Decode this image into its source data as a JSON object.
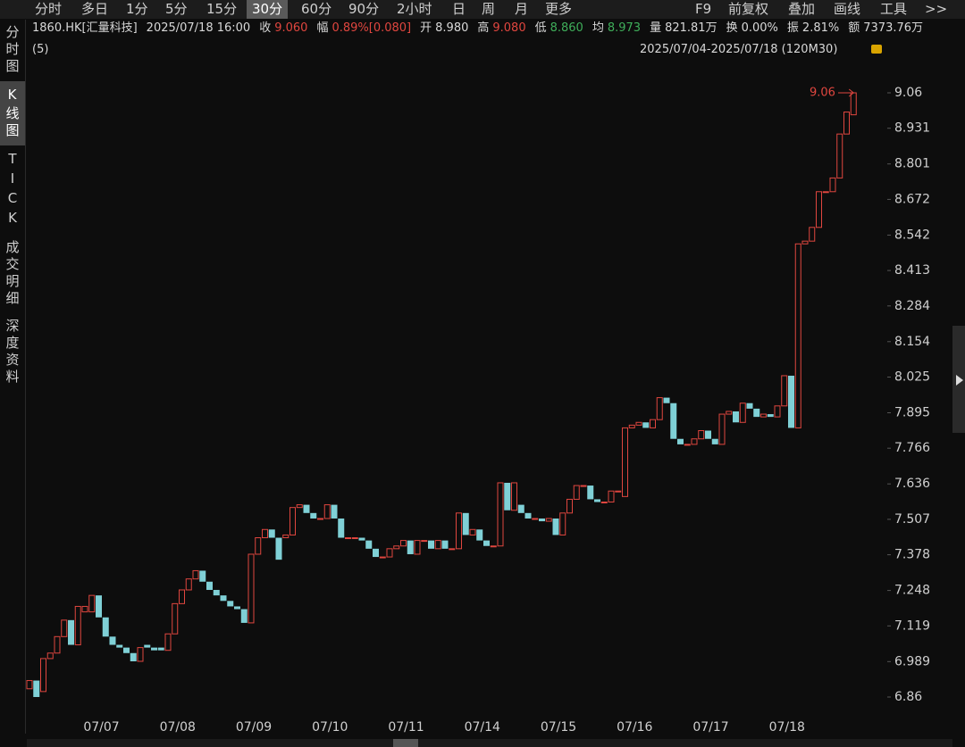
{
  "toolbar": {
    "left": [
      "分时",
      "多日",
      "1分",
      "5分",
      "15分",
      "30分",
      "60分",
      "90分",
      "2小时",
      "日",
      "周",
      "月",
      "更多"
    ],
    "right": [
      "F9",
      "前复权",
      "叠加",
      "画线",
      "工具",
      ">>"
    ]
  },
  "sidebar": [
    "分时图",
    "K线图",
    "TICK",
    "成交明细",
    "深度资料"
  ],
  "info": {
    "symbol": "1860.HK[汇量科技]",
    "time": "2025/07/18 16:00",
    "fields": [
      {
        "label": "收",
        "value": "9.060",
        "color": "#e0463f"
      },
      {
        "label": "幅",
        "value": "0.89%[0.080]",
        "color": "#e0463f"
      },
      {
        "label": "开",
        "value": "8.980",
        "color": "#d8d8d8"
      },
      {
        "label": "高",
        "value": "9.080",
        "color": "#e0463f"
      },
      {
        "label": "低",
        "value": "8.860",
        "color": "#3fae5a"
      },
      {
        "label": "均",
        "value": "8.973",
        "color": "#3fae5a"
      },
      {
        "label": "量",
        "value": "821.81万",
        "color": "#d8d8d8"
      },
      {
        "label": "换",
        "value": "0.00%",
        "color": "#d8d8d8"
      },
      {
        "label": "振",
        "value": "2.81%",
        "color": "#d8d8d8"
      },
      {
        "label": "额",
        "value": "7373.76万",
        "color": "#d8d8d8"
      }
    ],
    "sub": "(5)",
    "range": "2025/07/04-2025/07/18 (120M30)"
  },
  "chart_data": {
    "type": "candlestick",
    "annotation": "9.06",
    "up_color": "#e0463f",
    "down_color": "#7fd0d6",
    "ylim": [
      6.86,
      9.06
    ],
    "yticks": [
      9.06,
      8.931,
      8.801,
      8.672,
      8.542,
      8.413,
      8.284,
      8.154,
      8.025,
      7.895,
      7.766,
      7.636,
      7.507,
      7.378,
      7.248,
      7.119,
      6.989,
      6.86
    ],
    "categories": [
      null,
      null,
      null,
      null,
      null,
      null,
      null,
      null,
      null,
      null,
      "07/07",
      null,
      null,
      null,
      null,
      null,
      null,
      null,
      null,
      null,
      null,
      "07/08",
      null,
      null,
      null,
      null,
      null,
      null,
      null,
      null,
      null,
      null,
      "07/09",
      null,
      null,
      null,
      null,
      null,
      null,
      null,
      null,
      null,
      null,
      "07/10",
      null,
      null,
      null,
      null,
      null,
      null,
      null,
      null,
      null,
      null,
      "07/11",
      null,
      null,
      null,
      null,
      null,
      null,
      null,
      null,
      null,
      null,
      "07/14",
      null,
      null,
      null,
      null,
      null,
      null,
      null,
      null,
      null,
      null,
      "07/15",
      null,
      null,
      null,
      null,
      null,
      null,
      null,
      null,
      null,
      null,
      "07/16",
      null,
      null,
      null,
      null,
      null,
      null,
      null,
      null,
      null,
      null,
      "07/17",
      null,
      null,
      null,
      null,
      null,
      null,
      null,
      null,
      null,
      null,
      "07/18",
      null,
      null,
      null,
      null,
      null,
      null,
      null,
      null,
      null,
      null
    ],
    "open": [
      6.89,
      6.92,
      6.88,
      7.0,
      7.02,
      7.08,
      7.14,
      7.05,
      7.17,
      7.17,
      7.23,
      7.15,
      7.08,
      7.05,
      7.04,
      7.02,
      6.99,
      7.05,
      7.04,
      7.04,
      7.03,
      7.09,
      7.2,
      7.25,
      7.29,
      7.32,
      7.28,
      7.25,
      7.23,
      7.21,
      7.19,
      7.18,
      7.13,
      7.38,
      7.44,
      7.47,
      7.44,
      7.44,
      7.45,
      7.55,
      7.56,
      7.53,
      7.51,
      7.51,
      7.56,
      7.51,
      7.44,
      7.44,
      7.44,
      7.43,
      7.4,
      7.37,
      7.37,
      7.4,
      7.41,
      7.43,
      7.38,
      7.43,
      7.43,
      7.4,
      7.43,
      7.4,
      7.4,
      7.53,
      7.45,
      7.47,
      7.43,
      7.41,
      7.41,
      7.64,
      7.54,
      7.56,
      7.53,
      7.51,
      7.51,
      7.5,
      7.51,
      7.45,
      7.53,
      7.58,
      7.63,
      7.63,
      7.58,
      7.57,
      7.57,
      7.61,
      7.59,
      7.84,
      7.85,
      7.86,
      7.84,
      7.87,
      7.95,
      7.93,
      7.8,
      7.78,
      7.78,
      7.8,
      7.83,
      7.8,
      7.78,
      7.89,
      7.9,
      7.86,
      7.93,
      7.91,
      7.88,
      7.89,
      7.88,
      7.92,
      8.03,
      7.84,
      8.51,
      8.52,
      8.57,
      8.7,
      8.7,
      8.75,
      8.91,
      8.98
    ],
    "close": [
      6.92,
      6.86,
      7.0,
      7.02,
      7.08,
      7.14,
      7.05,
      7.19,
      7.19,
      7.23,
      7.15,
      7.08,
      7.05,
      7.04,
      7.02,
      6.99,
      7.04,
      7.04,
      7.03,
      7.03,
      7.09,
      7.2,
      7.25,
      7.29,
      7.32,
      7.28,
      7.25,
      7.23,
      7.21,
      7.19,
      7.18,
      7.13,
      7.38,
      7.44,
      7.47,
      7.44,
      7.36,
      7.45,
      7.55,
      7.56,
      7.53,
      7.51,
      7.51,
      7.56,
      7.51,
      7.44,
      7.44,
      7.44,
      7.43,
      7.4,
      7.37,
      7.37,
      7.4,
      7.41,
      7.43,
      7.38,
      7.43,
      7.43,
      7.4,
      7.43,
      7.4,
      7.4,
      7.53,
      7.45,
      7.47,
      7.43,
      7.41,
      7.41,
      7.64,
      7.54,
      7.64,
      7.53,
      7.51,
      7.51,
      7.5,
      7.51,
      7.45,
      7.53,
      7.58,
      7.63,
      7.63,
      7.58,
      7.57,
      7.57,
      7.61,
      7.61,
      7.84,
      7.85,
      7.86,
      7.84,
      7.87,
      7.95,
      7.93,
      7.8,
      7.78,
      7.78,
      7.8,
      7.83,
      7.8,
      7.78,
      7.89,
      7.9,
      7.86,
      7.93,
      7.91,
      7.88,
      7.89,
      7.88,
      7.92,
      8.03,
      7.84,
      8.51,
      8.52,
      8.57,
      8.7,
      8.7,
      8.75,
      8.91,
      8.99,
      9.06
    ]
  }
}
